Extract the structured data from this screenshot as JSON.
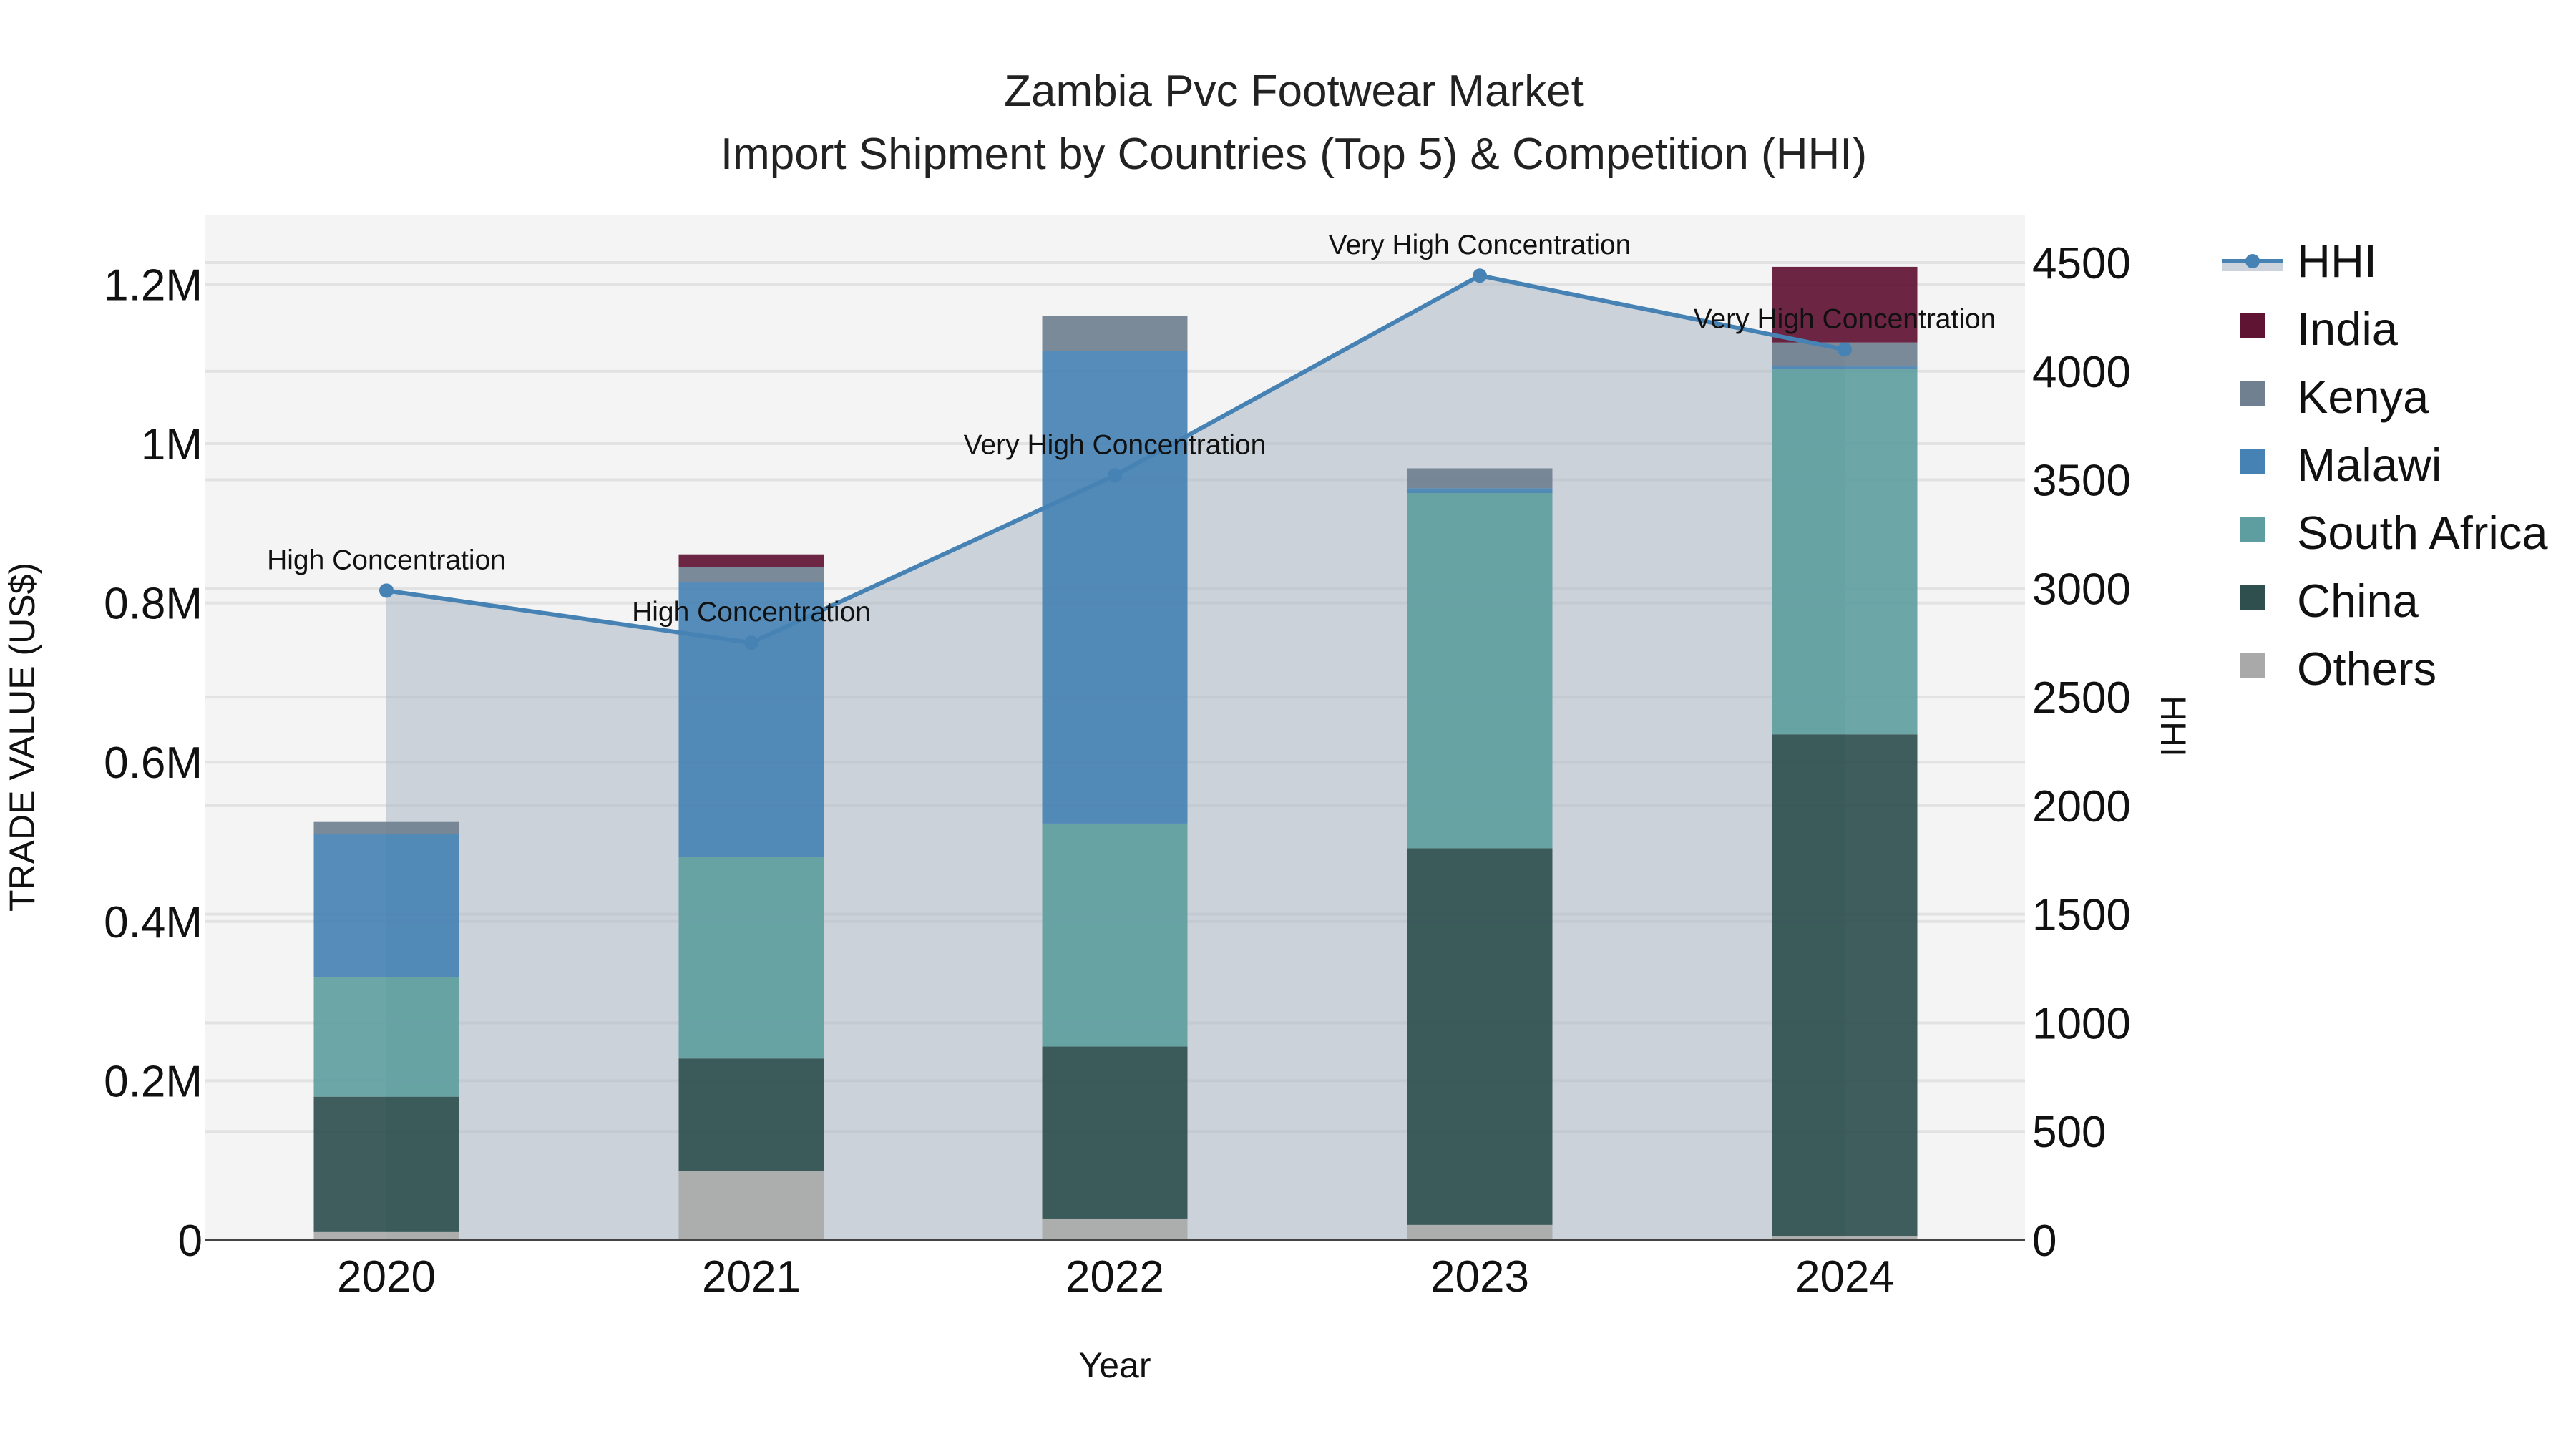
{
  "chart_data": {
    "type": "bar",
    "stacked": true,
    "title": "Zambia Pvc Footwear Market",
    "subtitle": "Import Shipment by Countries (Top 5) & Competition (HHI)",
    "xlabel": "Year",
    "ylabel": "TRADE VALUE (US$)",
    "y2label": "HHI",
    "categories": [
      "2020",
      "2021",
      "2022",
      "2023",
      "2024"
    ],
    "ylim": [
      0,
      1280000
    ],
    "y_ticks": [
      "0",
      "0.2M",
      "0.4M",
      "0.6M",
      "0.8M",
      "1M",
      "1.2M"
    ],
    "y2lim": [
      0,
      4700
    ],
    "y2_ticks": [
      "0",
      "500",
      "1000",
      "1500",
      "2000",
      "2500",
      "3000",
      "3500",
      "4000",
      "4500"
    ],
    "series": [
      {
        "name": "Others",
        "color": "#A9A9A9",
        "values": [
          10000,
          87000,
          27000,
          19000,
          5000
        ]
      },
      {
        "name": "China",
        "color": "#2F4F4F",
        "values": [
          170000,
          141000,
          216000,
          473000,
          630000
        ]
      },
      {
        "name": "South Africa",
        "color": "#5F9EA0",
        "values": [
          150000,
          253000,
          280000,
          446000,
          459000
        ]
      },
      {
        "name": "Malawi",
        "color": "#4682B4",
        "values": [
          180000,
          345000,
          593000,
          6000,
          3000
        ]
      },
      {
        "name": "Kenya",
        "color": "#708090",
        "values": [
          15000,
          19000,
          44000,
          25000,
          30000
        ]
      },
      {
        "name": "India",
        "color": "#5F1433",
        "values": [
          0,
          16000,
          0,
          0,
          95000
        ]
      }
    ],
    "line_series": {
      "name": "HHI",
      "axis": "y2",
      "color": "#4682B4",
      "fill_color": "rgba(176,186,200,0.6)",
      "values": [
        2990,
        2750,
        3520,
        4440,
        4100
      ],
      "annotations": [
        "High Concentration",
        "High Concentration",
        "Very High Concentration",
        "Very High Concentration",
        "Very High Concentration"
      ]
    },
    "legend": {
      "position": "right",
      "entries": [
        "HHI",
        "India",
        "Kenya",
        "Malawi",
        "South Africa",
        "China",
        "Others"
      ]
    },
    "grid": true,
    "plot_bg": "#F4F4F4"
  }
}
